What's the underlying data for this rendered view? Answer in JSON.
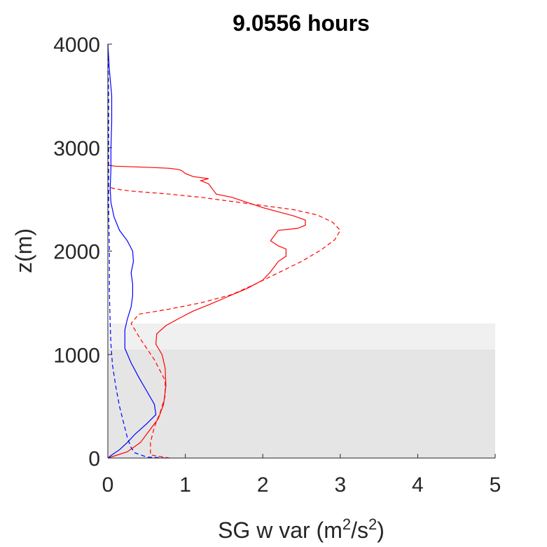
{
  "chart_data": {
    "type": "line",
    "title": "9.0556 hours",
    "ylabel": "z(m)",
    "xlabel": "SG w var (m²/s²)",
    "xlabel_parts": {
      "base": "SG w var (m",
      "sup1": "2",
      "mid": "/s",
      "sup2": "2",
      "end": ")"
    },
    "xlim": [
      0,
      5
    ],
    "ylim": [
      0,
      4000
    ],
    "xticks": [
      0,
      1,
      2,
      3,
      4,
      5
    ],
    "yticks": [
      0,
      1000,
      2000,
      3000,
      4000
    ],
    "grid": false,
    "shaded_regions": [
      {
        "z_from": 0,
        "z_to": 1050,
        "x_from": 0,
        "x_to": 5,
        "color": "#e5e5e5"
      },
      {
        "z_from": 1050,
        "z_to": 1300,
        "x_from": 0,
        "x_to": 5,
        "color": "#f0f0f0"
      }
    ],
    "series": [
      {
        "color": "#ff0000",
        "dash": "solid",
        "points": [
          [
            0,
            0
          ],
          [
            0.25,
            60
          ],
          [
            0.42,
            150
          ],
          [
            0.55,
            280
          ],
          [
            0.65,
            380
          ],
          [
            0.72,
            520
          ],
          [
            0.75,
            700
          ],
          [
            0.74,
            870
          ],
          [
            0.7,
            1000
          ],
          [
            0.62,
            1100
          ],
          [
            0.63,
            1200
          ],
          [
            0.75,
            1280
          ],
          [
            0.92,
            1350
          ],
          [
            1.1,
            1420
          ],
          [
            1.3,
            1480
          ],
          [
            1.55,
            1560
          ],
          [
            1.8,
            1640
          ],
          [
            2.0,
            1720
          ],
          [
            2.1,
            1800
          ],
          [
            2.2,
            1900
          ],
          [
            2.3,
            1950
          ],
          [
            2.3,
            2020
          ],
          [
            2.2,
            2050
          ],
          [
            2.1,
            2100
          ],
          [
            2.2,
            2200
          ],
          [
            2.45,
            2220
          ],
          [
            2.55,
            2250
          ],
          [
            2.55,
            2300
          ],
          [
            2.4,
            2340
          ],
          [
            2.2,
            2380
          ],
          [
            2.0,
            2420
          ],
          [
            1.8,
            2470
          ],
          [
            1.6,
            2520
          ],
          [
            1.4,
            2550
          ],
          [
            1.35,
            2600
          ],
          [
            1.3,
            2650
          ],
          [
            1.2,
            2680
          ],
          [
            1.3,
            2700
          ],
          [
            1.1,
            2720
          ],
          [
            1.0,
            2750
          ],
          [
            0.95,
            2780
          ],
          [
            0.9,
            2790
          ],
          [
            0.8,
            2800
          ],
          [
            0.5,
            2810
          ],
          [
            0.1,
            2820
          ],
          [
            0,
            2830
          ]
        ]
      },
      {
        "color": "#ff0000",
        "dash": "dashed",
        "points": [
          [
            0.8,
            0
          ],
          [
            0.55,
            30
          ],
          [
            0.55,
            150
          ],
          [
            0.6,
            300
          ],
          [
            0.68,
            450
          ],
          [
            0.74,
            600
          ],
          [
            0.74,
            750
          ],
          [
            0.6,
            950
          ],
          [
            0.42,
            1150
          ],
          [
            0.3,
            1300
          ],
          [
            0.4,
            1390
          ],
          [
            0.8,
            1440
          ],
          [
            1.2,
            1500
          ],
          [
            1.6,
            1580
          ],
          [
            1.9,
            1680
          ],
          [
            2.2,
            1790
          ],
          [
            2.5,
            1900
          ],
          [
            2.75,
            2010
          ],
          [
            2.93,
            2110
          ],
          [
            3.0,
            2200
          ],
          [
            2.9,
            2280
          ],
          [
            2.7,
            2350
          ],
          [
            2.4,
            2400
          ],
          [
            2.0,
            2440
          ],
          [
            1.6,
            2480
          ],
          [
            1.2,
            2520
          ],
          [
            0.8,
            2550
          ],
          [
            0.3,
            2580
          ],
          [
            0.1,
            2600
          ],
          [
            0,
            2620
          ]
        ]
      },
      {
        "color": "#0000ff",
        "dash": "solid",
        "points": [
          [
            0,
            0
          ],
          [
            0.05,
            30
          ],
          [
            0.15,
            80
          ],
          [
            0.25,
            150
          ],
          [
            0.35,
            230
          ],
          [
            0.5,
            330
          ],
          [
            0.62,
            420
          ],
          [
            0.6,
            520
          ],
          [
            0.5,
            650
          ],
          [
            0.4,
            780
          ],
          [
            0.3,
            920
          ],
          [
            0.22,
            1060
          ],
          [
            0.22,
            1150
          ],
          [
            0.22,
            1240
          ],
          [
            0.25,
            1340
          ],
          [
            0.3,
            1460
          ],
          [
            0.32,
            1570
          ],
          [
            0.32,
            1680
          ],
          [
            0.3,
            1790
          ],
          [
            0.33,
            1900
          ],
          [
            0.32,
            2000
          ],
          [
            0.25,
            2100
          ],
          [
            0.15,
            2200
          ],
          [
            0.08,
            2330
          ],
          [
            0.04,
            2470
          ],
          [
            0.03,
            2600
          ],
          [
            0.04,
            2800
          ],
          [
            0.04,
            3000
          ],
          [
            0.05,
            3250
          ],
          [
            0.05,
            3500
          ],
          [
            0.02,
            3750
          ],
          [
            0,
            4000
          ]
        ]
      },
      {
        "color": "#0000ff",
        "dash": "dashed",
        "points": [
          [
            0.75,
            0
          ],
          [
            0.5,
            10
          ],
          [
            0.35,
            50
          ],
          [
            0.3,
            100
          ],
          [
            0.25,
            200
          ],
          [
            0.2,
            350
          ],
          [
            0.15,
            500
          ],
          [
            0.1,
            700
          ],
          [
            0.06,
            900
          ],
          [
            0.04,
            1100
          ],
          [
            0.03,
            1300
          ],
          [
            0.02,
            1600
          ],
          [
            0.02,
            2000
          ],
          [
            0.01,
            2400
          ],
          [
            0.01,
            3000
          ],
          [
            0.01,
            3500
          ],
          [
            0,
            4000
          ]
        ]
      }
    ]
  }
}
